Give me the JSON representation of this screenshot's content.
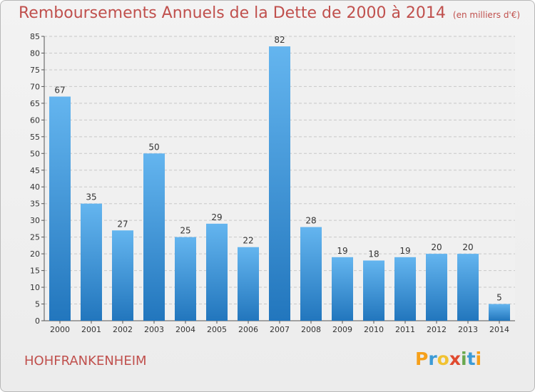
{
  "title": "Remboursements Annuels de la Dette de 2000 à 2014",
  "unit": "(en milliers d'€)",
  "commune": "HOHFRANKENHEIM",
  "logo": {
    "text": "Proxiti",
    "colors": [
      "#f6a01a",
      "#3c9bd6",
      "#f1c232",
      "#e04a2f",
      "#6aa84f",
      "#3c9bd6",
      "#f6a01a"
    ]
  },
  "colors": {
    "title": "#c0504d",
    "bar_light": "#64b5ef",
    "bar_dark": "#2276bd",
    "grid": "#c8c8c8"
  },
  "chart_data": {
    "type": "bar",
    "categories": [
      "2000",
      "2001",
      "2002",
      "2003",
      "2004",
      "2005",
      "2006",
      "2007",
      "2008",
      "2009",
      "2010",
      "2011",
      "2012",
      "2013",
      "2014"
    ],
    "values": [
      67,
      35,
      27,
      50,
      25,
      29,
      22,
      82,
      28,
      19,
      18,
      19,
      20,
      20,
      5
    ],
    "ylim": [
      0,
      85
    ],
    "yticks": [
      0,
      5,
      10,
      15,
      20,
      25,
      30,
      35,
      40,
      45,
      50,
      55,
      60,
      65,
      70,
      75,
      80,
      85
    ],
    "grid": true
  }
}
